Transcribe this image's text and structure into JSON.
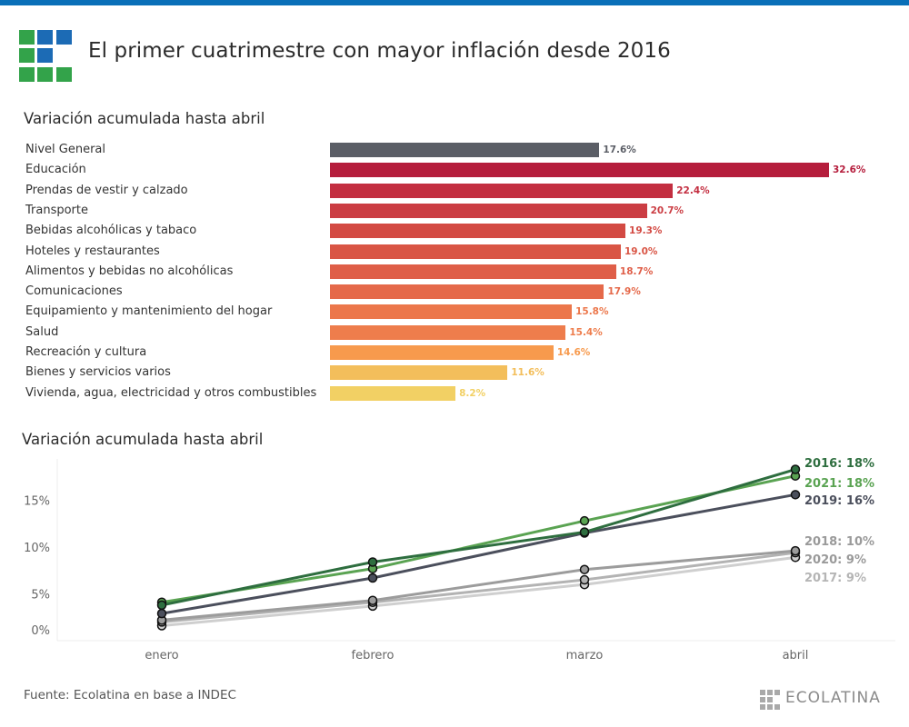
{
  "header": {
    "title": "El primer cuatrimestre con mayor inflación desde 2016",
    "logo_colors": {
      "green": "#33a34a",
      "blue": "#1c6bb5"
    }
  },
  "colors": {
    "topbar": "#0a6fb8"
  },
  "chart_data": [
    {
      "type": "bar",
      "orientation": "horizontal",
      "title": "Variación acumulada hasta abril",
      "categories": [
        "Nivel General",
        "Educación",
        "Prendas de vestir y calzado",
        "Transporte",
        "Bebidas alcohólicas y tabaco",
        "Hoteles y restaurantes",
        "Alimentos y bebidas no alcohólicas",
        "Comunicaciones",
        "Equipamiento y mantenimiento del hogar",
        "Salud",
        "Recreación y cultura",
        "Bienes y servicios varios",
        "Vivienda, agua, electricidad y otros combustibles"
      ],
      "values": [
        17.6,
        32.6,
        22.4,
        20.7,
        19.3,
        19.0,
        18.7,
        17.9,
        15.8,
        15.4,
        14.6,
        11.6,
        8.2
      ],
      "value_labels": [
        "17.6%",
        "32.6%",
        "22.4%",
        "20.7%",
        "19.3%",
        "19.0%",
        "18.7%",
        "17.9%",
        "15.8%",
        "15.4%",
        "14.6%",
        "11.6%",
        "8.2%"
      ],
      "colors": [
        "#5b5e66",
        "#b51d3c",
        "#c32e40",
        "#cb3d43",
        "#d34a43",
        "#d95545",
        "#df5e48",
        "#e5694a",
        "#ec774b",
        "#ee7d4c",
        "#f79a4d",
        "#f3be5b",
        "#f2d064"
      ],
      "label_colors": [
        "#5b5e66",
        "#b51d3c",
        "#c32e40",
        "#cb3d43",
        "#d34a43",
        "#d95545",
        "#df5e48",
        "#e5694a",
        "#ec774b",
        "#ee7d4c",
        "#f79a4d",
        "#f3be5b",
        "#f2d064"
      ],
      "xlim": [
        0,
        32.6
      ]
    },
    {
      "type": "line",
      "title": "Variación acumulada hasta abril",
      "x": [
        "enero",
        "febrero",
        "marzo",
        "abril"
      ],
      "ylim": [
        0,
        19
      ],
      "yticks": [
        0,
        5,
        10,
        15
      ],
      "ytick_labels": [
        "0%",
        "5%",
        "10%",
        "15%"
      ],
      "grid": false,
      "series": [
        {
          "name": "2017",
          "values": [
            1.6,
            3.7,
            6.0,
            8.9
          ],
          "color": "#cfcfcf",
          "label": "2017: 9%",
          "label_color": "#b5b5b5"
        },
        {
          "name": "2020",
          "values": [
            2.0,
            4.1,
            6.5,
            9.4
          ],
          "color": "#b3b3b3",
          "label": "2020: 9%",
          "label_color": "#9a9a9a"
        },
        {
          "name": "2018",
          "values": [
            2.2,
            4.3,
            7.6,
            9.6
          ],
          "color": "#9c9c9c",
          "label": "2018: 10%",
          "label_color": "#9a9a9a"
        },
        {
          "name": "2019",
          "values": [
            2.9,
            6.7,
            11.5,
            15.6
          ],
          "color": "#4b4f5c",
          "label": "2019: 16%",
          "label_color": "#4b4f5c"
        },
        {
          "name": "2021",
          "values": [
            4.1,
            7.7,
            12.8,
            17.6
          ],
          "color": "#5aa352",
          "label": "2021: 18%",
          "label_color": "#5aa352"
        },
        {
          "name": "2016",
          "values": [
            3.8,
            8.4,
            11.6,
            18.3
          ],
          "color": "#2e6e3f",
          "label": "2016: 18%",
          "label_color": "#2e6e3f"
        }
      ],
      "end_labels_order": [
        "2016",
        "2021",
        "2019",
        "2018",
        "2020",
        "2017"
      ]
    }
  ],
  "footer": {
    "source": "Fuente: Ecolatina en base a INDEC",
    "brand": "ECOLATINA"
  }
}
